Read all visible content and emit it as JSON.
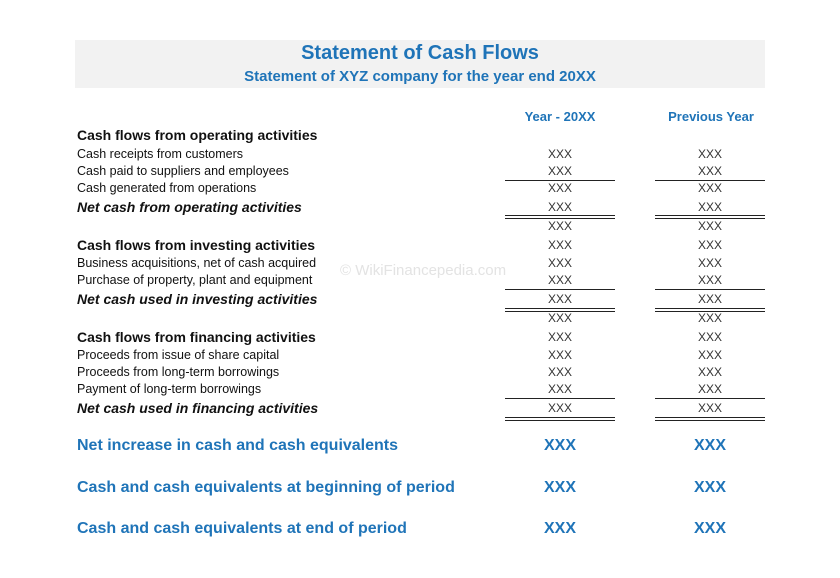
{
  "header": {
    "title": "Statement of Cash Flows",
    "subtitle": "Statement of XYZ company for the year end 20XX"
  },
  "columns": [
    "Year - 20XX",
    "Previous Year"
  ],
  "watermark": "© WikiFinancepedia.com",
  "rows": [
    {
      "heading": "Cash flows from operating activities"
    },
    {
      "label": "Cash receipts from customers",
      "values": [
        "XXX",
        "XXX"
      ]
    },
    {
      "label": "Cash paid to suppliers and employees",
      "values": [
        "XXX",
        "XXX"
      ]
    },
    {
      "label": "Cash generated from operations",
      "values": [
        "XXX",
        "XXX"
      ]
    },
    {
      "total": "Net cash from operating activities",
      "values": [
        "XXX",
        "XXX"
      ]
    },
    {
      "values": [
        "XXX",
        "XXX"
      ]
    },
    {
      "heading": "Cash flows from investing activities",
      "values": [
        "XXX",
        "XXX"
      ]
    },
    {
      "label": "Business acquisitions, net of cash acquired",
      "values": [
        "XXX",
        "XXX"
      ]
    },
    {
      "label": "Purchase of property, plant and equipment",
      "values": [
        "XXX",
        "XXX"
      ]
    },
    {
      "total": "Net cash used in investing activities",
      "values": [
        "XXX",
        "XXX"
      ]
    },
    {
      "values": [
        "XXX",
        "XXX"
      ]
    },
    {
      "heading": "Cash flows from financing activities",
      "values": [
        "XXX",
        "XXX"
      ]
    },
    {
      "label": "Proceeds from issue of share capital",
      "values": [
        "XXX",
        "XXX"
      ]
    },
    {
      "label": "Proceeds from long-term borrowings",
      "values": [
        "XXX",
        "XXX"
      ]
    },
    {
      "label": "Payment of long-term borrowings",
      "values": [
        "XXX",
        "XXX"
      ]
    },
    {
      "total": "Net cash used in financing activities",
      "values": [
        "XXX",
        "XXX"
      ]
    },
    {
      "summary": "Net increase in cash and cash equivalents",
      "values": [
        "XXX",
        "XXX"
      ]
    },
    {
      "summary": "Cash and cash equivalents at beginning of period",
      "values": [
        "XXX",
        "XXX"
      ]
    },
    {
      "summary": "Cash and cash equivalents at end of period",
      "values": [
        "XXX",
        "XXX"
      ]
    }
  ]
}
